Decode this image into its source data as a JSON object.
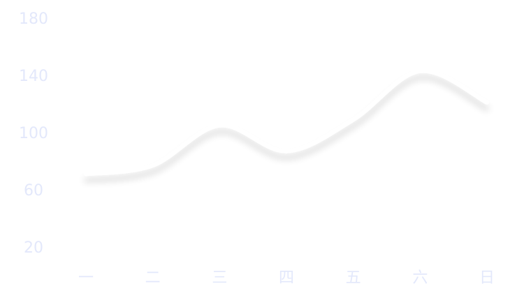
{
  "chart_data": {
    "type": "line",
    "categories": [
      "一",
      "二",
      "三",
      "四",
      "五",
      "六",
      "日"
    ],
    "series": [
      {
        "values": [
          72,
          78,
          106,
          88,
          110,
          144,
          122
        ]
      }
    ],
    "y_ticks": [
      20,
      60,
      100,
      140,
      180
    ],
    "ylim": [
      20,
      180
    ],
    "grid": false,
    "smooth": true,
    "title": "",
    "xlabel": "",
    "ylabel": ""
  },
  "colors": {
    "line": "#ffffff",
    "tick_label": "#e3e8fb",
    "shadow": "#000000"
  }
}
